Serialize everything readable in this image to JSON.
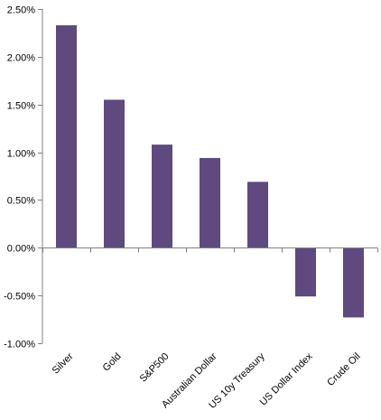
{
  "chart_data": {
    "type": "bar",
    "title": "",
    "xlabel": "",
    "ylabel": "",
    "categories": [
      "Silver",
      "Gold",
      "S&P500",
      "Australian Dollar",
      "US 10y Treasury",
      "US Dollar Index",
      "Crude Oil"
    ],
    "values": [
      2.33,
      1.55,
      1.08,
      0.94,
      0.69,
      -0.51,
      -0.73
    ],
    "ylim": [
      -1.0,
      2.5
    ],
    "yticks": [
      2.5,
      2.0,
      1.5,
      1.0,
      0.5,
      0.0,
      -0.5,
      -1.0
    ],
    "ytick_labels": [
      "2.50%",
      "2.00%",
      "1.50%",
      "1.00%",
      "0.50%",
      "0.00%",
      "-0.50%",
      "-1.00%"
    ],
    "grid": false,
    "legend": "none",
    "bar_color": "#5e4a7e",
    "axis_color": "#808080"
  }
}
